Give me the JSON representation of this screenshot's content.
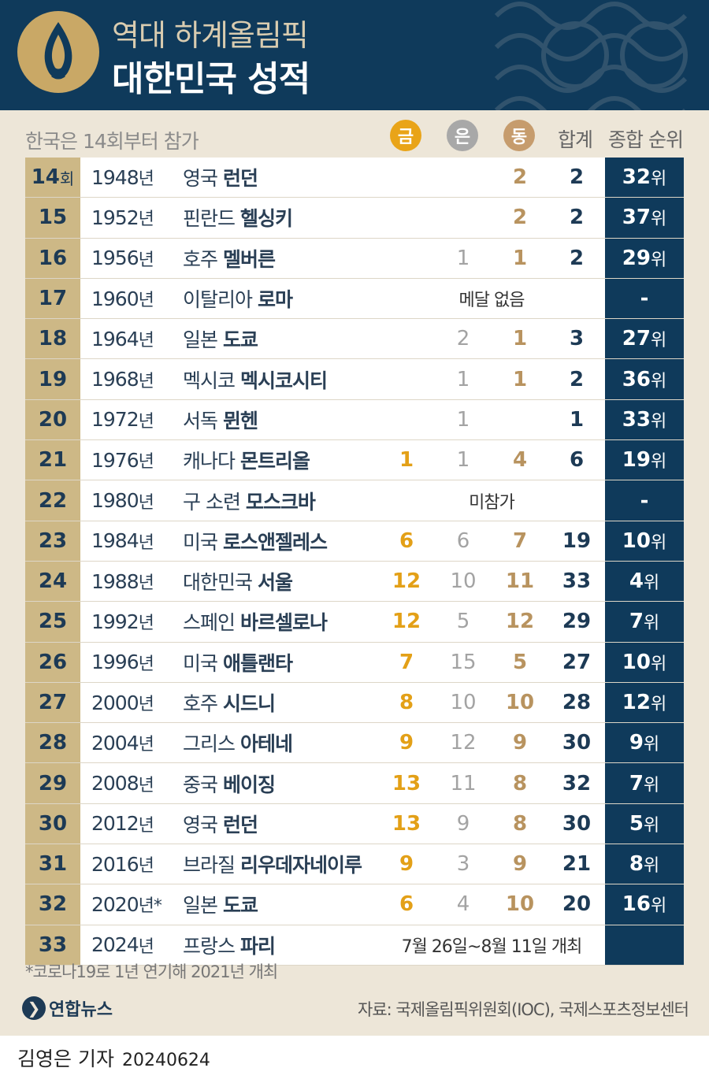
{
  "header": {
    "title_line1": "역대 하계올림픽",
    "title_line2": "대한민국 성적"
  },
  "subheader": "한국은 14회부터 참가",
  "columns": {
    "gold": "금",
    "silver": "은",
    "bronze": "동",
    "total": "합계",
    "rank": "종합 순위"
  },
  "rows": [
    {
      "no": "14",
      "no_suffix": "회",
      "year": "1948",
      "year_suffix": "년",
      "country": "영국",
      "city": "런던",
      "gold": "",
      "silver": "",
      "bronze": "2",
      "total": "2",
      "rank": "32",
      "rank_suffix": "위",
      "note": ""
    },
    {
      "no": "15",
      "no_suffix": "",
      "year": "1952",
      "year_suffix": "년",
      "country": "핀란드",
      "city": "헬싱키",
      "gold": "",
      "silver": "",
      "bronze": "2",
      "total": "2",
      "rank": "37",
      "rank_suffix": "위",
      "note": ""
    },
    {
      "no": "16",
      "no_suffix": "",
      "year": "1956",
      "year_suffix": "년",
      "country": "호주",
      "city": "멜버른",
      "gold": "",
      "silver": "1",
      "bronze": "1",
      "total": "2",
      "rank": "29",
      "rank_suffix": "위",
      "note": ""
    },
    {
      "no": "17",
      "no_suffix": "",
      "year": "1960",
      "year_suffix": "년",
      "country": "이탈리아",
      "city": "로마",
      "gold": "",
      "silver": "",
      "bronze": "",
      "total": "",
      "rank": "-",
      "rank_suffix": "",
      "note": "메달 없음"
    },
    {
      "no": "18",
      "no_suffix": "",
      "year": "1964",
      "year_suffix": "년",
      "country": "일본",
      "city": "도쿄",
      "gold": "",
      "silver": "2",
      "bronze": "1",
      "total": "3",
      "rank": "27",
      "rank_suffix": "위",
      "note": ""
    },
    {
      "no": "19",
      "no_suffix": "",
      "year": "1968",
      "year_suffix": "년",
      "country": "멕시코",
      "city": "멕시코시티",
      "gold": "",
      "silver": "1",
      "bronze": "1",
      "total": "2",
      "rank": "36",
      "rank_suffix": "위",
      "note": ""
    },
    {
      "no": "20",
      "no_suffix": "",
      "year": "1972",
      "year_suffix": "년",
      "country": "서독",
      "city": "뮌헨",
      "gold": "",
      "silver": "1",
      "bronze": "",
      "total": "1",
      "rank": "33",
      "rank_suffix": "위",
      "note": ""
    },
    {
      "no": "21",
      "no_suffix": "",
      "year": "1976",
      "year_suffix": "년",
      "country": "캐나다",
      "city": "몬트리올",
      "gold": "1",
      "silver": "1",
      "bronze": "4",
      "total": "6",
      "rank": "19",
      "rank_suffix": "위",
      "note": ""
    },
    {
      "no": "22",
      "no_suffix": "",
      "year": "1980",
      "year_suffix": "년",
      "country": "구 소련",
      "city": "모스크바",
      "gold": "",
      "silver": "",
      "bronze": "",
      "total": "",
      "rank": "-",
      "rank_suffix": "",
      "note": "미참가"
    },
    {
      "no": "23",
      "no_suffix": "",
      "year": "1984",
      "year_suffix": "년",
      "country": "미국",
      "city": "로스앤젤레스",
      "gold": "6",
      "silver": "6",
      "bronze": "7",
      "total": "19",
      "rank": "10",
      "rank_suffix": "위",
      "note": ""
    },
    {
      "no": "24",
      "no_suffix": "",
      "year": "1988",
      "year_suffix": "년",
      "country": "대한민국",
      "city": "서울",
      "gold": "12",
      "silver": "10",
      "bronze": "11",
      "total": "33",
      "rank": "4",
      "rank_suffix": "위",
      "note": ""
    },
    {
      "no": "25",
      "no_suffix": "",
      "year": "1992",
      "year_suffix": "년",
      "country": "스페인",
      "city": "바르셀로나",
      "gold": "12",
      "silver": "5",
      "bronze": "12",
      "total": "29",
      "rank": "7",
      "rank_suffix": "위",
      "note": ""
    },
    {
      "no": "26",
      "no_suffix": "",
      "year": "1996",
      "year_suffix": "년",
      "country": "미국",
      "city": "애틀랜타",
      "gold": "7",
      "silver": "15",
      "bronze": "5",
      "total": "27",
      "rank": "10",
      "rank_suffix": "위",
      "note": ""
    },
    {
      "no": "27",
      "no_suffix": "",
      "year": "2000",
      "year_suffix": "년",
      "country": "호주",
      "city": "시드니",
      "gold": "8",
      "silver": "10",
      "bronze": "10",
      "total": "28",
      "rank": "12",
      "rank_suffix": "위",
      "note": ""
    },
    {
      "no": "28",
      "no_suffix": "",
      "year": "2004",
      "year_suffix": "년",
      "country": "그리스",
      "city": "아테네",
      "gold": "9",
      "silver": "12",
      "bronze": "9",
      "total": "30",
      "rank": "9",
      "rank_suffix": "위",
      "note": ""
    },
    {
      "no": "29",
      "no_suffix": "",
      "year": "2008",
      "year_suffix": "년",
      "country": "중국",
      "city": "베이징",
      "gold": "13",
      "silver": "11",
      "bronze": "8",
      "total": "32",
      "rank": "7",
      "rank_suffix": "위",
      "note": ""
    },
    {
      "no": "30",
      "no_suffix": "",
      "year": "2012",
      "year_suffix": "년",
      "country": "영국",
      "city": "런던",
      "gold": "13",
      "silver": "9",
      "bronze": "8",
      "total": "30",
      "rank": "5",
      "rank_suffix": "위",
      "note": ""
    },
    {
      "no": "31",
      "no_suffix": "",
      "year": "2016",
      "year_suffix": "년",
      "country": "브라질",
      "city": "리우데자네이루",
      "gold": "9",
      "silver": "3",
      "bronze": "9",
      "total": "21",
      "rank": "8",
      "rank_suffix": "위",
      "note": ""
    },
    {
      "no": "32",
      "no_suffix": "",
      "year": "2020",
      "year_suffix": "년*",
      "country": "일본",
      "city": "도쿄",
      "gold": "6",
      "silver": "4",
      "bronze": "10",
      "total": "20",
      "rank": "16",
      "rank_suffix": "위",
      "note": ""
    },
    {
      "no": "33",
      "no_suffix": "",
      "year": "2024",
      "year_suffix": "년",
      "country": "프랑스",
      "city": "파리",
      "gold": "",
      "silver": "",
      "bronze": "",
      "total": "",
      "rank": "",
      "rank_suffix": "",
      "note": "7월 26일~8월 11일 개최"
    }
  ],
  "footnote": "*코로나19로 1년 연기해 2021년 개최",
  "brand": "연합뉴스",
  "source": "자료: 국제올림픽위원회(IOC), 국제스포츠정보센터",
  "reporter": "김영은 기자",
  "date": "20240624"
}
